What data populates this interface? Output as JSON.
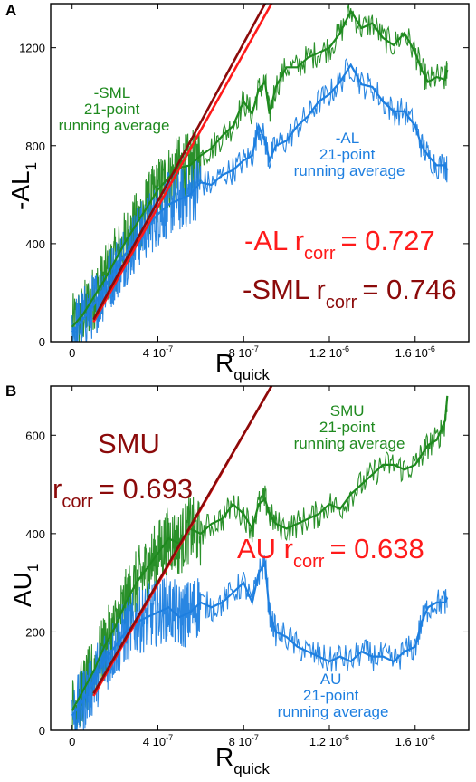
{
  "chart_data": [
    {
      "panel": "A",
      "type": "scatter",
      "xlabel_main": "R",
      "xlabel_sub": "quick",
      "ylabel_main": "-AL",
      "ylabel_sub": "1",
      "xlim": [
        -1e-07,
        1.85e-06
      ],
      "ylim": [
        0,
        1380
      ],
      "x_ticks": [
        {
          "value": 0,
          "label": "0"
        },
        {
          "value": 4e-07,
          "label": "4 10",
          "exp": "-7"
        },
        {
          "value": 8e-07,
          "label": "8 10",
          "exp": "-7"
        },
        {
          "value": 1.2e-06,
          "label": "1.2 10",
          "exp": "-6"
        },
        {
          "value": 1.6e-06,
          "label": "1.6 10",
          "exp": "-6"
        }
      ],
      "y_ticks": [
        {
          "value": 0,
          "label": "0"
        },
        {
          "value": 400,
          "label": "400"
        },
        {
          "value": 800,
          "label": "800"
        },
        {
          "value": 1200,
          "label": "1200"
        }
      ],
      "series": [
        {
          "name": "-SML 21-point running average",
          "color": "#1f8a1f",
          "x": [
            0,
            5e-08,
            1e-07,
            1.5e-07,
            2e-07,
            2.5e-07,
            3e-07,
            3.5e-07,
            4e-07,
            4.5e-07,
            5e-07,
            5.5e-07,
            6e-07,
            6.5e-07,
            7e-07,
            7.5e-07,
            8e-07,
            8.4e-07,
            8.7e-07,
            9e-07,
            9.2e-07,
            9.5e-07,
            1e-06,
            1.05e-06,
            1.1e-06,
            1.15e-06,
            1.2e-06,
            1.25e-06,
            1.3e-06,
            1.35e-06,
            1.4e-06,
            1.45e-06,
            1.5e-06,
            1.55e-06,
            1.6e-06,
            1.63e-06,
            1.66e-06,
            1.7e-06,
            1.74e-06,
            1.75e-06
          ],
          "y": [
            60,
            110,
            180,
            250,
            330,
            410,
            480,
            550,
            620,
            670,
            710,
            720,
            760,
            790,
            840,
            880,
            980,
            930,
            1030,
            1060,
            930,
            1040,
            1120,
            1120,
            1160,
            1180,
            1200,
            1260,
            1350,
            1280,
            1300,
            1240,
            1210,
            1260,
            1180,
            1110,
            1060,
            1080,
            1070,
            1110
          ]
        },
        {
          "name": "-AL 21-point running average",
          "color": "#1e7fe0",
          "x": [
            0,
            5e-08,
            1e-07,
            1.5e-07,
            2e-07,
            2.5e-07,
            3e-07,
            3.5e-07,
            4e-07,
            4.5e-07,
            5e-07,
            5.5e-07,
            6e-07,
            6.5e-07,
            7e-07,
            7.5e-07,
            8e-07,
            8.4e-07,
            8.7e-07,
            9e-07,
            9.2e-07,
            9.5e-07,
            1e-06,
            1.05e-06,
            1.1e-06,
            1.15e-06,
            1.2e-06,
            1.25e-06,
            1.3e-06,
            1.35e-06,
            1.4e-06,
            1.45e-06,
            1.5e-06,
            1.55e-06,
            1.6e-06,
            1.63e-06,
            1.66e-06,
            1.7e-06,
            1.74e-06,
            1.75e-06
          ],
          "y": [
            40,
            90,
            150,
            220,
            290,
            360,
            420,
            470,
            520,
            560,
            580,
            600,
            650,
            640,
            680,
            700,
            740,
            760,
            880,
            820,
            740,
            800,
            820,
            880,
            920,
            980,
            1010,
            1060,
            1130,
            1050,
            1040,
            980,
            940,
            940,
            880,
            800,
            760,
            720,
            720,
            700
          ]
        }
      ],
      "fit_lines": [
        {
          "name": "-AL",
          "color": "#ff1a1a",
          "x0": 1e-07,
          "y0": 80,
          "x1": 9.3e-07,
          "y1": 1380
        },
        {
          "name": "-SML",
          "color": "#8b0a0a",
          "x0": 1e-07,
          "y0": 90,
          "x1": 9e-07,
          "y1": 1380
        }
      ],
      "annotations": {
        "sml_line1": "-SML",
        "sml_line2": "21-point",
        "sml_line3": "running average",
        "al_line1": "-AL",
        "al_line2": "21-point",
        "al_line3": "running average",
        "r_red_pre": "-AL r",
        "r_red_sub": "corr",
        "r_red_val": "= 0.727",
        "r_dark_pre": "-SML r",
        "r_dark_sub": "corr",
        "r_dark_val": "= 0.746"
      }
    },
    {
      "panel": "B",
      "type": "scatter",
      "xlabel_main": "R",
      "xlabel_sub": "quick",
      "ylabel_main": "AU",
      "ylabel_sub": "1",
      "xlim": [
        -1e-07,
        1.85e-06
      ],
      "ylim": [
        0,
        700
      ],
      "x_ticks": [
        {
          "value": 0,
          "label": "0"
        },
        {
          "value": 4e-07,
          "label": "4 10",
          "exp": "-7"
        },
        {
          "value": 8e-07,
          "label": "8 10",
          "exp": "-7"
        },
        {
          "value": 1.2e-06,
          "label": "1.2 10",
          "exp": "-6"
        },
        {
          "value": 1.6e-06,
          "label": "1.6 10",
          "exp": "-6"
        }
      ],
      "y_ticks": [
        {
          "value": 0,
          "label": "0"
        },
        {
          "value": 200,
          "label": "200"
        },
        {
          "value": 400,
          "label": "400"
        },
        {
          "value": 600,
          "label": "600"
        }
      ],
      "series": [
        {
          "name": "SMU 21-point running average",
          "color": "#1f8a1f",
          "x": [
            0,
            5e-08,
            1e-07,
            1.5e-07,
            2e-07,
            2.5e-07,
            3e-07,
            3.5e-07,
            4e-07,
            4.5e-07,
            5e-07,
            5.5e-07,
            6e-07,
            6.5e-07,
            7e-07,
            7.5e-07,
            8e-07,
            8.4e-07,
            8.7e-07,
            9e-07,
            9.2e-07,
            9.5e-07,
            1e-06,
            1.05e-06,
            1.1e-06,
            1.15e-06,
            1.2e-06,
            1.25e-06,
            1.3e-06,
            1.35e-06,
            1.4e-06,
            1.45e-06,
            1.5e-06,
            1.55e-06,
            1.6e-06,
            1.63e-06,
            1.66e-06,
            1.7e-06,
            1.74e-06,
            1.75e-06
          ],
          "y": [
            40,
            80,
            120,
            170,
            210,
            260,
            300,
            330,
            360,
            390,
            380,
            410,
            400,
            420,
            430,
            460,
            440,
            410,
            460,
            470,
            440,
            420,
            410,
            420,
            430,
            440,
            460,
            450,
            480,
            500,
            520,
            540,
            540,
            530,
            540,
            560,
            580,
            590,
            630,
            680
          ]
        },
        {
          "name": "AU 21-point running average",
          "color": "#1e7fe0",
          "x": [
            0,
            5e-08,
            1e-07,
            1.5e-07,
            2e-07,
            2.5e-07,
            3e-07,
            3.5e-07,
            4e-07,
            4.5e-07,
            5e-07,
            5.5e-07,
            6e-07,
            6.5e-07,
            7e-07,
            7.5e-07,
            8e-07,
            8.4e-07,
            8.7e-07,
            9e-07,
            9.2e-07,
            9.5e-07,
            1e-06,
            1.05e-06,
            1.1e-06,
            1.15e-06,
            1.2e-06,
            1.25e-06,
            1.3e-06,
            1.35e-06,
            1.4e-06,
            1.45e-06,
            1.5e-06,
            1.55e-06,
            1.6e-06,
            1.63e-06,
            1.66e-06,
            1.7e-06,
            1.74e-06,
            1.75e-06
          ],
          "y": [
            30,
            60,
            100,
            140,
            170,
            200,
            220,
            230,
            240,
            250,
            230,
            240,
            260,
            250,
            260,
            280,
            300,
            260,
            320,
            340,
            240,
            200,
            190,
            170,
            160,
            150,
            140,
            150,
            140,
            160,
            150,
            150,
            140,
            160,
            170,
            220,
            250,
            260,
            260,
            270
          ]
        }
      ],
      "fit_lines": [
        {
          "name": "AU",
          "color": "#ff1a1a",
          "x0": 1e-07,
          "y0": 70,
          "x1": 9.3e-07,
          "y1": 700
        },
        {
          "name": "SMU",
          "color": "#8b0a0a",
          "x0": 1e-07,
          "y0": 75,
          "x1": 9.3e-07,
          "y1": 700
        }
      ],
      "annotations": {
        "smu_line1": "SMU",
        "smu_line2": "21-point",
        "smu_line3": "running average",
        "au_line1": "AU",
        "au_line2": "21-point",
        "au_line3": "running average",
        "r_dark_title": "SMU",
        "r_dark_pre": "r",
        "r_dark_sub": "corr",
        "r_dark_val": "= 0.693",
        "r_red_pre": "AU r",
        "r_red_sub": "corr",
        "r_red_val": "= 0.638"
      }
    }
  ]
}
